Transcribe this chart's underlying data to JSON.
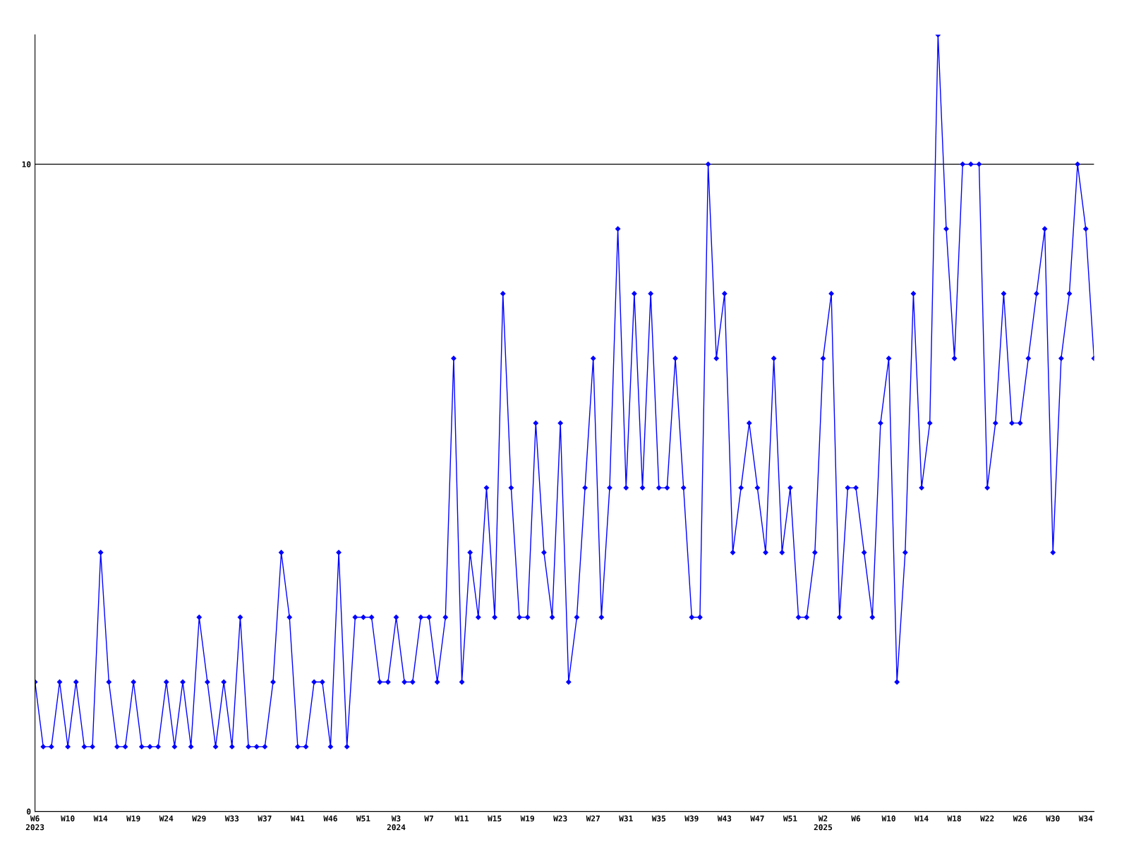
{
  "chart_data": {
    "type": "line",
    "categories": [
      "W6\n2023",
      null,
      null,
      null,
      "W10",
      null,
      null,
      null,
      "W14",
      null,
      null,
      null,
      "W19",
      null,
      null,
      null,
      "W24",
      null,
      null,
      null,
      "W29",
      null,
      null,
      null,
      "W33",
      null,
      null,
      null,
      "W37",
      null,
      null,
      null,
      "W41",
      null,
      null,
      null,
      "W46",
      null,
      null,
      null,
      "W51",
      null,
      null,
      null,
      "W3\n2024",
      null,
      null,
      null,
      "W7",
      null,
      null,
      null,
      "W11",
      null,
      null,
      null,
      "W15",
      null,
      null,
      null,
      "W19",
      null,
      null,
      null,
      "W23",
      null,
      null,
      null,
      "W27",
      null,
      null,
      null,
      "W31",
      null,
      null,
      null,
      "W35",
      null,
      null,
      null,
      "W39",
      null,
      null,
      null,
      "W43",
      null,
      null,
      null,
      "W47",
      null,
      null,
      null,
      "W51",
      null,
      null,
      null,
      "W2\n2025",
      null,
      null,
      null,
      "W6",
      null,
      null,
      null,
      "W10",
      null,
      null,
      null,
      "W14",
      null,
      null,
      null,
      "W18",
      null,
      null,
      null,
      "W22",
      null,
      null,
      null,
      "W26",
      null,
      null,
      null,
      "W30",
      null,
      null,
      null,
      "W34",
      null
    ],
    "series": [
      {
        "color": "#0000ff",
        "values": [
          2,
          1,
          1,
          2,
          1,
          2,
          1,
          1,
          4,
          2,
          1,
          1,
          2,
          1,
          1,
          1,
          2,
          1,
          2,
          1,
          3,
          2,
          1,
          2,
          1,
          3,
          1,
          1,
          1,
          2,
          4,
          3,
          1,
          1,
          2,
          2,
          1,
          4,
          1,
          3,
          3,
          3,
          2,
          2,
          3,
          2,
          2,
          3,
          3,
          2,
          3,
          7,
          2,
          4,
          3,
          5,
          3,
          8,
          5,
          3,
          3,
          6,
          4,
          3,
          6,
          2,
          3,
          5,
          7,
          3,
          5,
          9,
          5,
          8,
          5,
          8,
          5,
          5,
          7,
          5,
          3,
          3,
          10,
          7,
          8,
          4,
          5,
          6,
          5,
          4,
          7,
          4,
          5,
          3,
          3,
          4,
          7,
          8,
          3,
          5,
          5,
          4,
          3,
          6,
          7,
          2,
          4,
          8,
          5,
          6,
          12,
          9,
          7,
          10,
          10,
          10,
          5,
          6,
          8,
          6,
          6,
          7,
          8,
          9,
          4,
          7,
          8,
          10,
          9,
          7
        ]
      }
    ],
    "ylim": [
      0,
      12
    ],
    "yticks": [
      0,
      10
    ],
    "grid": "y",
    "marker": "diamond",
    "line_style": "solid"
  }
}
